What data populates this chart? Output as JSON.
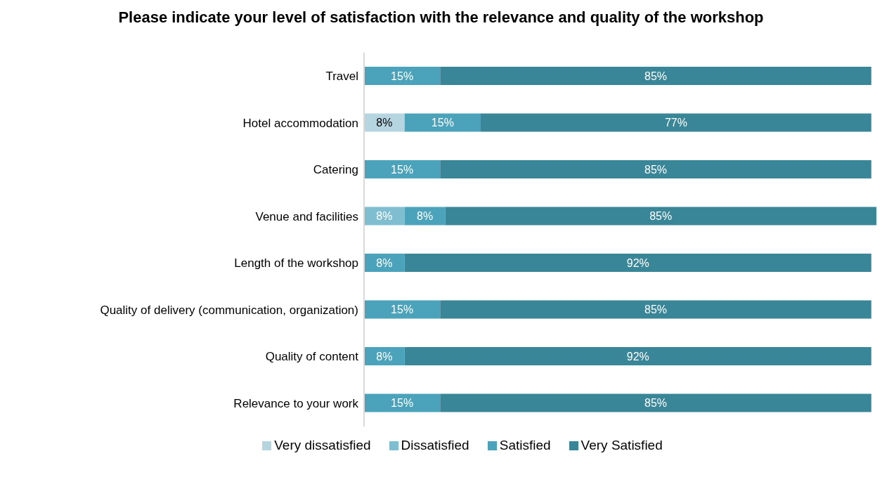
{
  "chart_data": {
    "type": "bar",
    "orientation": "horizontal",
    "stacked": true,
    "title": "Please indicate your level of satisfaction with the relevance and quality of the workshop",
    "categories": [
      "Travel",
      "Hotel accommodation",
      "Catering",
      "Venue and facilities",
      "Length of the workshop",
      "Quality of delivery (communication, organization)",
      "Quality of content",
      "Relevance to your work"
    ],
    "series": [
      {
        "name": "Very dissatisfied",
        "color": "#b5d5e0",
        "values": [
          null,
          8,
          null,
          null,
          null,
          null,
          null,
          null
        ],
        "value_labels": [
          null,
          "8%",
          null,
          null,
          null,
          null,
          null,
          null
        ]
      },
      {
        "name": "Dissatisfied",
        "color": "#7fbdd0",
        "values": [
          null,
          null,
          null,
          8,
          null,
          null,
          null,
          null
        ],
        "value_labels": [
          null,
          null,
          null,
          "8%",
          null,
          null,
          null,
          null
        ]
      },
      {
        "name": "Satisfied",
        "color": "#4aa3bb",
        "values": [
          15,
          15,
          15,
          8,
          8,
          15,
          8,
          15
        ],
        "value_labels": [
          "15%",
          "15%",
          "15%",
          "8%",
          "8%",
          "15%",
          "8%",
          "15%"
        ]
      },
      {
        "name": "Very Satisfied",
        "color": "#3a8699",
        "values": [
          85,
          77,
          85,
          85,
          92,
          85,
          92,
          85
        ],
        "value_labels": [
          "85%",
          "77%",
          "85%",
          "85%",
          "92%",
          "85%",
          "92%",
          "85%"
        ]
      }
    ],
    "xlim": [
      0,
      101
    ],
    "tick_labels": "y",
    "grid": false,
    "legend": "bottom"
  }
}
